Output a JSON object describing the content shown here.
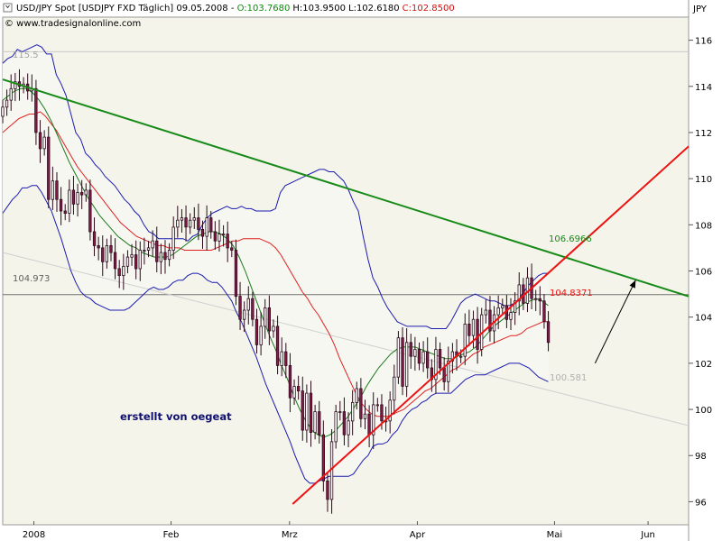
{
  "header": {
    "symbol": "USD/JPY Spot [USDJPY FXD  Täglich] 09.05.2008 - ",
    "open": "O:103.7680",
    "high": "H:103.9500",
    "low": "L:102.6180",
    "close": "C:102.8500",
    "copyright": "© www.tradesignalonline.com",
    "currency": "JPY"
  },
  "colors": {
    "background": "#ffffff",
    "plot_background": "#f4f4ea",
    "band_fill": "#f7f7f2",
    "bollinger": "#1b1bb0",
    "sma_red": "#e02020",
    "sma_green": "#1a7a1a",
    "trend_green": "#168a16",
    "trend_red": "#ee1111",
    "candle_up": "#ffffff",
    "candle_down": "#8a1a4a",
    "annotation_text": "#101070"
  },
  "annotations": {
    "watermark": "erstellt von oegeat",
    "h_level_top": "115.5",
    "h_level_mid": "104.973",
    "green_line_value": "106.6966",
    "red_line_value": "104.8371",
    "lower_band_value": "100.581"
  },
  "chart_data": {
    "type": "line",
    "title": "USD/JPY Spot [USDJPY FXD Täglich] 09.05.2008",
    "ylabel": "JPY",
    "ylim": [
      95,
      117
    ],
    "yticks": [
      96,
      98,
      100,
      102,
      104,
      106,
      108,
      110,
      112,
      114,
      116
    ],
    "xticks": [
      "2008",
      "Feb",
      "Mrz",
      "Apr",
      "Mai",
      "Jun"
    ],
    "xtick_index": [
      10,
      54,
      92,
      133,
      177,
      207
    ],
    "x_range": [
      0,
      220
    ],
    "last_index": 175,
    "grid": false,
    "closes": [
      113.1,
      113.4,
      113.9,
      114.2,
      114.0,
      114.1,
      113.8,
      113.9,
      112.0,
      111.3,
      111.8,
      109.1,
      109.9,
      109.1,
      108.6,
      108.5,
      109.5,
      108.9,
      109.4,
      109.3,
      109.5,
      107.7,
      107.1,
      107.0,
      106.4,
      107.1,
      106.8,
      106.1,
      105.8,
      106.2,
      106.6,
      106.7,
      106.1,
      106.9,
      106.9,
      107.0,
      107.3,
      106.4,
      106.8,
      106.5,
      106.9,
      107.9,
      108.2,
      108.3,
      107.9,
      108.2,
      108.3,
      107.8,
      107.5,
      108.3,
      107.7,
      107.3,
      107.6,
      107.6,
      107.0,
      106.9,
      104.9,
      103.9,
      104.3,
      104.8,
      103.9,
      102.8,
      103.6,
      104.4,
      103.4,
      103.6,
      101.9,
      102.5,
      101.9,
      100.5,
      101.0,
      100.8,
      99.1,
      100.7,
      99.0,
      99.9,
      98.9,
      96.9,
      96.1,
      98.6,
      99.9,
      99.9,
      98.9,
      99.5,
      100.3,
      100.9,
      99.6,
      99.8,
      98.9,
      100.2,
      100.2,
      99.5,
      99.5,
      100.4,
      101.4,
      103.1,
      101.0,
      102.9,
      102.3,
      102.6,
      102.0,
      102.5,
      101.8,
      101.3,
      102.6,
      101.8,
      101.2,
      102.1,
      102.5,
      102.3,
      102.3,
      103.7,
      103.2,
      103.9,
      102.6,
      104.1,
      104.3,
      103.4,
      104.1,
      104.4,
      104.5,
      103.9,
      104.2,
      104.7,
      105.4,
      104.6,
      105.7,
      104.8,
      104.8,
      104.7,
      103.8,
      102.9
    ],
    "series": [
      {
        "name": "Upper Bollinger",
        "start": 0,
        "values": [
          115.0,
          115.2,
          115.3,
          115.6,
          115.5,
          115.6,
          115.7,
          115.8,
          115.7,
          115.4,
          115.4,
          114.5,
          114.1,
          113.6,
          112.8,
          112.0,
          111.7,
          111.1,
          110.9,
          110.6,
          110.4,
          110.1,
          109.9,
          109.7,
          109.4,
          109.1,
          108.9,
          108.6,
          108.4,
          108.0,
          107.7,
          107.6,
          107.4,
          107.4,
          107.4,
          107.4,
          107.4,
          107.4,
          107.3,
          107.5,
          107.6,
          108.0,
          108.3,
          108.5,
          108.6,
          108.7,
          108.8,
          108.7,
          108.7,
          108.8,
          108.7,
          108.7,
          108.6,
          108.6,
          108.6,
          108.6,
          108.7,
          109.4,
          109.7,
          109.8,
          109.9,
          110.0,
          110.1,
          110.2,
          110.3,
          110.4,
          110.4,
          110.3,
          110.3,
          110.1,
          109.9,
          109.5,
          109.0,
          108.6,
          107.5,
          106.5,
          105.7,
          105.3,
          104.8,
          104.4,
          104.1,
          103.8,
          103.7,
          103.6,
          103.6,
          103.6,
          103.6,
          103.6,
          103.5,
          103.5,
          103.5,
          103.5,
          103.8,
          104.2,
          104.6,
          104.8,
          104.9,
          105.0,
          104.9,
          104.8,
          104.7,
          104.7,
          104.6,
          104.5,
          104.5,
          104.6,
          104.8,
          105.1,
          105.4,
          105.6,
          105.8,
          105.9,
          105.9
        ]
      },
      {
        "name": "Lower Bollinger",
        "start": 0,
        "values": [
          108.5,
          108.8,
          109.1,
          109.3,
          109.6,
          109.6,
          109.7,
          109.7,
          109.4,
          109.0,
          108.6,
          108.0,
          107.4,
          106.7,
          106.0,
          105.5,
          105.1,
          104.9,
          104.8,
          104.6,
          104.5,
          104.4,
          104.3,
          104.3,
          104.3,
          104.3,
          104.4,
          104.6,
          104.8,
          105.0,
          105.2,
          105.3,
          105.2,
          105.2,
          105.3,
          105.5,
          105.6,
          105.6,
          105.8,
          105.9,
          105.9,
          105.8,
          105.6,
          105.5,
          105.5,
          105.3,
          105.0,
          104.7,
          104.2,
          103.8,
          103.3,
          102.8,
          102.3,
          101.7,
          101.1,
          100.6,
          100.1,
          99.6,
          99.1,
          98.6,
          98.0,
          97.5,
          97.0,
          96.8,
          96.8,
          96.9,
          97.0,
          97.1,
          97.1,
          97.1,
          97.1,
          97.1,
          97.2,
          97.5,
          97.8,
          98.0,
          98.4,
          98.5,
          98.5,
          98.6,
          98.9,
          99.1,
          99.5,
          99.8,
          100.0,
          100.1,
          100.3,
          100.4,
          100.6,
          100.7,
          100.7,
          100.7,
          100.7,
          100.9,
          101.1,
          101.3,
          101.4,
          101.5,
          101.5,
          101.5,
          101.6,
          101.7,
          101.8,
          101.9,
          102.0,
          102.0,
          102.0,
          101.9,
          101.8,
          101.6,
          101.4,
          101.3,
          101.2
        ]
      },
      {
        "name": "SMA Red",
        "start": 0,
        "values": [
          112.0,
          112.2,
          112.4,
          112.6,
          112.7,
          112.8,
          112.8,
          112.9,
          112.7,
          112.4,
          112.1,
          111.7,
          111.3,
          110.9,
          110.5,
          110.2,
          109.9,
          109.6,
          109.3,
          109.0,
          108.7,
          108.4,
          108.1,
          107.9,
          107.7,
          107.5,
          107.4,
          107.3,
          107.2,
          107.1,
          107.1,
          107.0,
          107.0,
          107.0,
          106.9,
          106.9,
          106.9,
          106.9,
          106.9,
          106.9,
          107.0,
          107.1,
          107.2,
          107.3,
          107.3,
          107.4,
          107.4,
          107.4,
          107.4,
          107.3,
          107.2,
          107.0,
          106.7,
          106.3,
          105.9,
          105.5,
          105.1,
          104.8,
          104.4,
          104.1,
          103.7,
          103.3,
          102.8,
          102.2,
          101.7,
          101.2,
          100.7,
          100.3,
          100.0,
          99.8,
          99.7,
          99.7,
          99.7,
          99.8,
          99.9,
          100.0,
          100.2,
          100.4,
          100.6,
          100.8,
          100.9,
          101.1,
          101.3,
          101.5,
          101.7,
          101.8,
          102.0,
          102.2,
          102.4,
          102.5,
          102.7,
          102.8,
          102.9,
          103.0,
          103.1,
          103.2,
          103.2,
          103.3,
          103.5,
          103.6,
          103.7,
          103.8,
          103.8
        ]
      },
      {
        "name": "SMA Green",
        "start": 0,
        "values": [
          113.4,
          113.6,
          113.8,
          113.9,
          113.9,
          113.7,
          113.4,
          113.0,
          112.5,
          111.9,
          111.3,
          110.7,
          110.2,
          109.7,
          109.2,
          108.8,
          108.4,
          108.1,
          107.8,
          107.5,
          107.3,
          107.1,
          107.0,
          106.8,
          106.7,
          106.6,
          106.6,
          106.6,
          106.7,
          106.9,
          107.1,
          107.3,
          107.5,
          107.6,
          107.7,
          107.7,
          107.6,
          107.4,
          107.1,
          106.6,
          106.0,
          105.3,
          104.6,
          103.9,
          103.2,
          102.6,
          101.9,
          101.3,
          100.6,
          100.0,
          99.5,
          99.1,
          98.9,
          98.8,
          98.9,
          99.1,
          99.4,
          99.7,
          100.1,
          100.5,
          101.0,
          101.4,
          101.8,
          102.1,
          102.4,
          102.6,
          102.7,
          102.7,
          102.7,
          102.6,
          102.5,
          102.4,
          102.3,
          102.2,
          102.2,
          102.3,
          102.4,
          102.5,
          102.7,
          103.0,
          103.3,
          103.6,
          103.8,
          104.0,
          104.2,
          104.4,
          104.6,
          104.7,
          104.8,
          104.7,
          104.5
        ]
      },
      {
        "name": "Green Trendline",
        "x": [
          0,
          220
        ],
        "values": [
          114.3,
          104.9
        ]
      },
      {
        "name": "Red Trendline",
        "x": [
          93,
          220
        ],
        "values": [
          95.9,
          111.4
        ]
      },
      {
        "name": "Grey Trendline",
        "x": [
          0,
          220
        ],
        "values": [
          106.8,
          99.3
        ]
      },
      {
        "name": "Forecast Arrow",
        "x": [
          190,
          203
        ],
        "values": [
          102.0,
          105.6
        ]
      }
    ],
    "h_lines": [
      115.5,
      104.973
    ]
  }
}
